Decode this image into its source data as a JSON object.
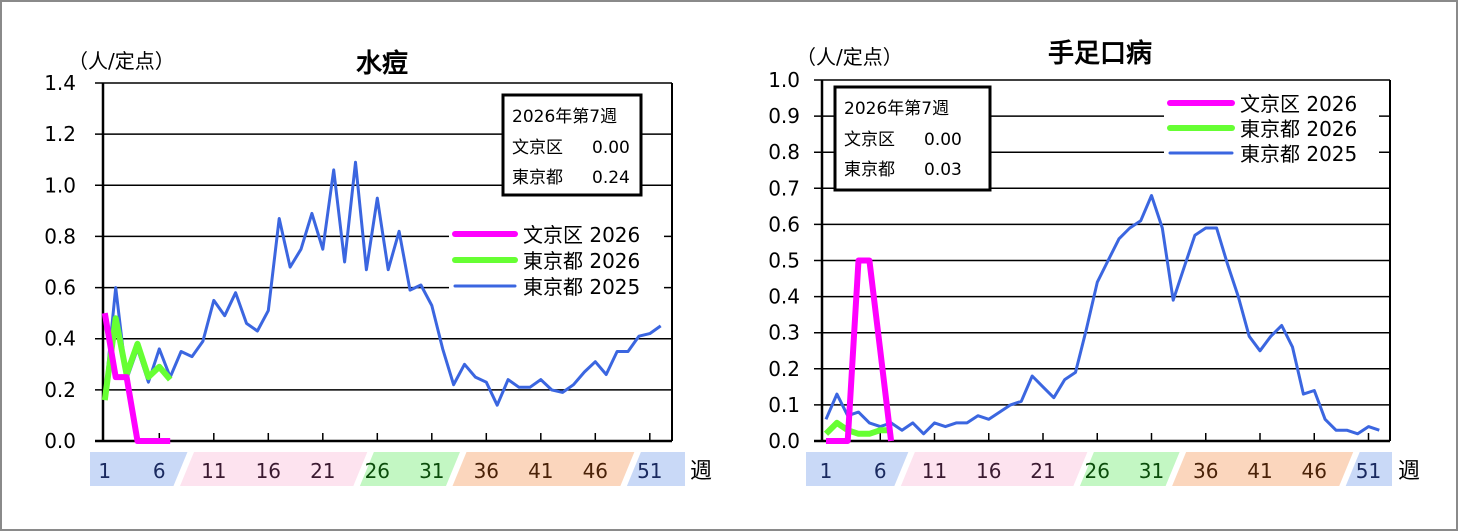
{
  "colors": {
    "bunkyo_2026": "#ff00ff",
    "tokyo_2026": "#66ff33",
    "tokyo_2025": "#3b66e0",
    "band_blue": "#c9d9f7",
    "band_pink": "#fde3ef",
    "band_green": "#c3f7c3",
    "band_orange": "#fbd6bd"
  },
  "week_unit": "週",
  "week_ticks": [
    "1",
    "6",
    "11",
    "16",
    "21",
    "26",
    "31",
    "36",
    "41",
    "46",
    "51"
  ],
  "chart_data": [
    {
      "type": "line",
      "title": "水痘",
      "ylabel": "（人/定点）",
      "xlabel": "週",
      "ylim": [
        0,
        1.4
      ],
      "yticks": [
        "0.0",
        "0.2",
        "0.4",
        "0.6",
        "0.8",
        "1.0",
        "1.2",
        "1.4"
      ],
      "grid": true,
      "legend_position": "right-middle",
      "info_box": {
        "title": "2026年第7週",
        "rows": [
          {
            "label": "文京区",
            "value": "0.00"
          },
          {
            "label": "東京都",
            "value": "0.24"
          }
        ]
      },
      "x": [
        1,
        2,
        3,
        4,
        5,
        6,
        7,
        8,
        9,
        10,
        11,
        12,
        13,
        14,
        15,
        16,
        17,
        18,
        19,
        20,
        21,
        22,
        23,
        24,
        25,
        26,
        27,
        28,
        29,
        30,
        31,
        32,
        33,
        34,
        35,
        36,
        37,
        38,
        39,
        40,
        41,
        42,
        43,
        44,
        45,
        46,
        47,
        48,
        49,
        50,
        51,
        52
      ],
      "series": [
        {
          "name": "文京区 2026",
          "key": "bunkyo_2026",
          "values": [
            0.5,
            0.25,
            0.25,
            0.0,
            0.0,
            0.0,
            0.0
          ]
        },
        {
          "name": "東京都 2026",
          "key": "tokyo_2026",
          "values": [
            0.16,
            0.48,
            0.26,
            0.38,
            0.25,
            0.29,
            0.24
          ]
        },
        {
          "name": "東京都 2025",
          "key": "tokyo_2025",
          "values": [
            0.17,
            0.6,
            0.24,
            0.36,
            0.23,
            0.36,
            0.25,
            0.35,
            0.33,
            0.39,
            0.55,
            0.49,
            0.58,
            0.46,
            0.43,
            0.51,
            0.87,
            0.68,
            0.75,
            0.89,
            0.75,
            1.06,
            0.7,
            1.09,
            0.67,
            0.95,
            0.67,
            0.82,
            0.59,
            0.61,
            0.53,
            0.36,
            0.22,
            0.3,
            0.25,
            0.23,
            0.14,
            0.24,
            0.21,
            0.21,
            0.24,
            0.2,
            0.19,
            0.22,
            0.27,
            0.31,
            0.26,
            0.35,
            0.35,
            0.41,
            0.42,
            0.45
          ]
        }
      ]
    },
    {
      "type": "line",
      "title": "手足口病",
      "ylabel": "（人/定点）",
      "xlabel": "週",
      "ylim": [
        0,
        1.0
      ],
      "yticks": [
        "0.0",
        "0.1",
        "0.2",
        "0.3",
        "0.4",
        "0.5",
        "0.6",
        "0.7",
        "0.8",
        "0.9",
        "1.0"
      ],
      "grid": true,
      "legend_position": "top-right",
      "info_box": {
        "title": "2026年第7週",
        "rows": [
          {
            "label": "文京区",
            "value": "0.00"
          },
          {
            "label": "東京都",
            "value": "0.03"
          }
        ]
      },
      "x": [
        1,
        2,
        3,
        4,
        5,
        6,
        7,
        8,
        9,
        10,
        11,
        12,
        13,
        14,
        15,
        16,
        17,
        18,
        19,
        20,
        21,
        22,
        23,
        24,
        25,
        26,
        27,
        28,
        29,
        30,
        31,
        32,
        33,
        34,
        35,
        36,
        37,
        38,
        39,
        40,
        41,
        42,
        43,
        44,
        45,
        46,
        47,
        48,
        49,
        50,
        51,
        52
      ],
      "series": [
        {
          "name": "文京区 2026",
          "key": "bunkyo_2026",
          "values": [
            0.0,
            0.0,
            0.0,
            0.5,
            0.5,
            0.25,
            0.0
          ]
        },
        {
          "name": "東京都 2026",
          "key": "tokyo_2026",
          "values": [
            0.02,
            0.05,
            0.03,
            0.02,
            0.02,
            0.03,
            0.03
          ]
        },
        {
          "name": "東京都 2025",
          "key": "tokyo_2025",
          "values": [
            0.06,
            0.13,
            0.07,
            0.08,
            0.05,
            0.04,
            0.05,
            0.03,
            0.05,
            0.02,
            0.05,
            0.04,
            0.05,
            0.05,
            0.07,
            0.06,
            0.08,
            0.1,
            0.11,
            0.18,
            0.15,
            0.12,
            0.17,
            0.19,
            0.31,
            0.44,
            0.5,
            0.56,
            0.59,
            0.61,
            0.68,
            0.59,
            0.39,
            0.48,
            0.57,
            0.59,
            0.59,
            0.49,
            0.4,
            0.29,
            0.25,
            0.29,
            0.32,
            0.26,
            0.13,
            0.14,
            0.06,
            0.03,
            0.03,
            0.02,
            0.04,
            0.03
          ]
        }
      ]
    }
  ]
}
